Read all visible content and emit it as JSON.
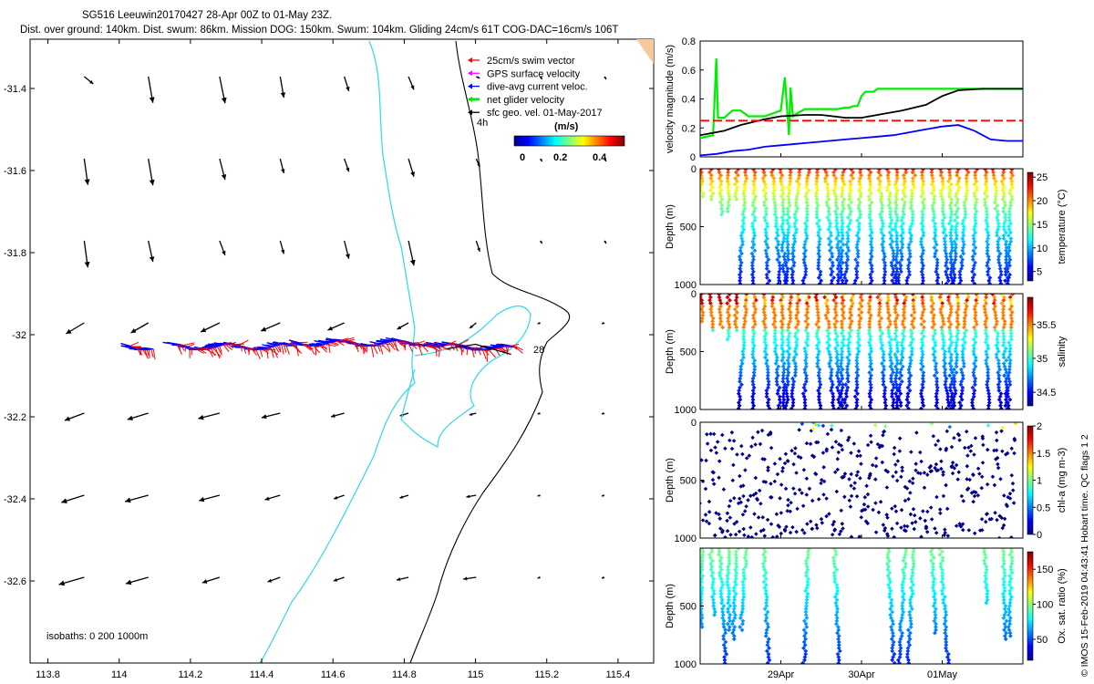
{
  "title": {
    "line1": "SG516 Leeuwin20170427 28-Apr 00Z to 01-May 23Z.",
    "line2": "Dist. over ground: 140km. Dist. swum: 86km. Mission DOG: 150km. Swum: 104km. Gliding 24cm/s 61T COG-DAC=16cm/s 106T"
  },
  "credit": "© IMOS 15-Feb-2019 04:43:41 Hobart time. QC flags 1  2",
  "map": {
    "x_ticks": [
      "113.8",
      "114",
      "114.2",
      "114.4",
      "114.6",
      "114.8",
      "115",
      "115.2",
      "115.4"
    ],
    "y_ticks": [
      "-31.4",
      "-31.6",
      "-31.8",
      "-32",
      "-32.2",
      "-32.4",
      "-32.6"
    ],
    "xlim": [
      113.75,
      115.5
    ],
    "ylim": [
      -32.8,
      -31.28
    ],
    "isobaths_label": "isobaths: 0   200  1000m",
    "label_4h": "4h",
    "label_28": "28",
    "legend": {
      "items": [
        {
          "label": "25cm/s swim vector",
          "color": "#ff0000"
        },
        {
          "label": "GPS surface velocity",
          "color": "#ff00ff"
        },
        {
          "label": "dive-avg current veloc.",
          "color": "#0000ff"
        },
        {
          "label": "net glider velocity",
          "color": "#00ee00"
        },
        {
          "label": "sfc geo. vel. 01-May-2017",
          "color": "#000000"
        }
      ],
      "colorbar_title": "(m/s)",
      "colorbar_ticks": [
        "0",
        "0.2",
        "0.4"
      ]
    }
  },
  "chart_data": [
    {
      "type": "line",
      "title": "",
      "ylabel": "velocity magnitude (m/s)",
      "ylim": [
        0,
        0.8
      ],
      "y_ticks": [
        "0",
        "0.2",
        "0.4",
        "0.6",
        "0.8"
      ],
      "xlim": [
        0,
        4
      ],
      "series": [
        {
          "name": "net glider velocity",
          "color": "#00ee00",
          "x": [
            0,
            0.16,
            0.2,
            0.22,
            0.25,
            0.3,
            0.4,
            0.5,
            0.55,
            0.6,
            0.7,
            0.8,
            0.9,
            1.0,
            1.05,
            1.1,
            1.12,
            1.15,
            1.2,
            1.3,
            1.4,
            1.5,
            1.6,
            1.7,
            1.8,
            1.85,
            1.9,
            1.95,
            2.0,
            2.05,
            2.1,
            2.15,
            2.2,
            2.3,
            2.4,
            2.5,
            2.6,
            2.7,
            2.8,
            2.9,
            2.95,
            3.0,
            3.05,
            3.1,
            3.15,
            3.2,
            3.25,
            3.3,
            3.4,
            3.5,
            3.6,
            3.7,
            3.8,
            3.9,
            4.0
          ],
          "y": [
            0.13,
            0.15,
            0.68,
            0.27,
            0.27,
            0.27,
            0.32,
            0.32,
            0.3,
            0.28,
            0.28,
            0.28,
            0.3,
            0.32,
            0.55,
            0.15,
            0.48,
            0.28,
            0.3,
            0.33,
            0.33,
            0.33,
            0.33,
            0.33,
            0.34,
            0.34,
            0.35,
            0.35,
            0.42,
            0.45,
            0.45,
            0.45,
            0.47,
            0.47,
            0.47,
            0.47,
            0.47,
            0.47,
            0.47,
            0.47,
            0.47,
            0.47,
            0.47,
            0.47,
            0.47,
            0.47,
            0.47,
            0.47,
            0.47,
            0.47,
            0.47,
            0.47,
            0.47,
            0.47,
            0.47
          ]
        },
        {
          "name": "sfc geo. vel.",
          "color": "#000000",
          "x": [
            0,
            0.3,
            0.5,
            0.8,
            1.0,
            1.3,
            1.5,
            1.8,
            2.0,
            2.3,
            2.5,
            2.8,
            3.0,
            3.2,
            3.5,
            3.8,
            4.0
          ],
          "y": [
            0.15,
            0.18,
            0.22,
            0.26,
            0.28,
            0.29,
            0.29,
            0.27,
            0.27,
            0.3,
            0.32,
            0.36,
            0.42,
            0.46,
            0.47,
            0.47,
            0.47
          ]
        },
        {
          "name": "25cm/s swim vector",
          "color": "#ff0000",
          "x": [
            0,
            4
          ],
          "y": [
            0.25,
            0.25
          ]
        },
        {
          "name": "dive-avg current veloc.",
          "color": "#0000ff",
          "x": [
            0,
            0.2,
            0.4,
            0.6,
            0.8,
            1.0,
            1.2,
            1.4,
            1.6,
            1.8,
            2.0,
            2.2,
            2.4,
            2.6,
            2.8,
            3.0,
            3.2,
            3.4,
            3.6,
            3.8,
            4.0
          ],
          "y": [
            0.01,
            0.02,
            0.04,
            0.05,
            0.07,
            0.08,
            0.09,
            0.1,
            0.11,
            0.12,
            0.13,
            0.14,
            0.15,
            0.17,
            0.19,
            0.21,
            0.22,
            0.18,
            0.12,
            0.11,
            0.11
          ]
        }
      ]
    },
    {
      "type": "scatter",
      "ylabel": "Depth (m)",
      "colorbar_label": "temperature (°C)",
      "colorbar_ticks": [
        "5",
        "10",
        "15",
        "20",
        "25"
      ],
      "y_ticks": [
        "0",
        "500",
        "1000"
      ],
      "ylim": [
        1000,
        0
      ],
      "value_range": [
        3,
        26
      ]
    },
    {
      "type": "scatter",
      "ylabel": "Depth (m)",
      "colorbar_label": "salinity",
      "colorbar_ticks": [
        "34.5",
        "35",
        "35.5"
      ],
      "y_ticks": [
        "0",
        "500",
        "1000"
      ],
      "ylim": [
        1000,
        0
      ],
      "value_range": [
        34.3,
        35.9
      ]
    },
    {
      "type": "scatter",
      "ylabel": "Depth (m)",
      "colorbar_label": "chl-a (mg m-3)",
      "colorbar_ticks": [
        "0",
        "0.5",
        "1",
        "1.5",
        "2"
      ],
      "y_ticks": [
        "0",
        "500",
        "1000"
      ],
      "ylim": [
        1000,
        0
      ],
      "value_range": [
        0,
        2
      ]
    },
    {
      "type": "scatter",
      "ylabel": "Depth (m)",
      "colorbar_label": "Ox. sat. ratio (%)",
      "colorbar_ticks": [
        "50",
        "100",
        "150"
      ],
      "y_ticks": [
        "500",
        "1000"
      ],
      "ylim": [
        1000,
        0
      ],
      "value_range": [
        20,
        175
      ]
    }
  ],
  "time_axis": {
    "labels": [
      "29Apr",
      "30Apr",
      "01May"
    ],
    "positions": [
      1,
      2,
      3
    ]
  }
}
